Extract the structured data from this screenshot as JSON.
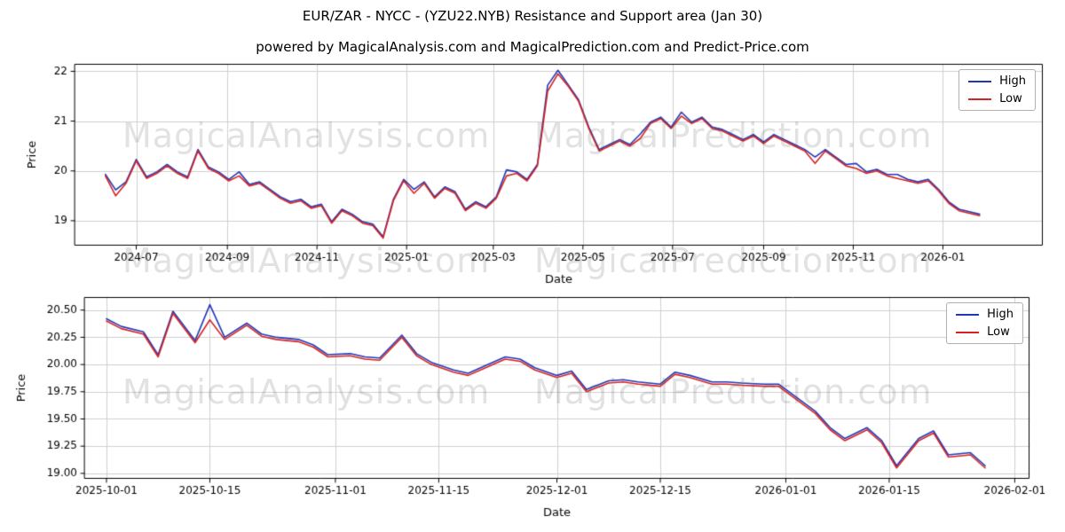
{
  "header": {
    "title": "EUR/ZAR - NYCC -  (YZU22.NYB) Resistance and Support area (Jan 30)",
    "subtitle": "powered by MagicalAnalysis.com and MagicalPrediction.com and Predict-Price.com"
  },
  "watermarks": {
    "left": "MagicalAnalysis.com",
    "right": "MagicalPrediction.com"
  },
  "legend": {
    "high_label": "High",
    "low_label": "Low"
  },
  "colors": {
    "high": "#2038b5",
    "low": "#d62222",
    "grid": "#cfcfcf",
    "axis": "#000000",
    "watermark": "rgba(60,60,60,0.15)"
  },
  "chart_data": [
    {
      "type": "line",
      "title": "",
      "xlabel": "Date",
      "ylabel": "Price",
      "grid": true,
      "legend_position": "upper right",
      "xlim": [
        "2024-05-20",
        "2026-03-10"
      ],
      "ylim": [
        18.5,
        22.15
      ],
      "xticks": [
        "2024-07",
        "2024-09",
        "2024-11",
        "2025-01",
        "2025-03",
        "2025-05",
        "2025-07",
        "2025-09",
        "2025-11",
        "2026-01"
      ],
      "xtick_labels": [
        "2024-07",
        "2024-09",
        "2024-11",
        "2025-01",
        "2025-03",
        "2025-05",
        "2025-07",
        "2025-09",
        "2025-11",
        "2026-01"
      ],
      "yticks": [
        19,
        20,
        21,
        22
      ],
      "ytick_labels": [
        "19",
        "20",
        "21",
        "22"
      ],
      "x": [
        "2024-06-10",
        "2024-06-17",
        "2024-06-24",
        "2024-07-01",
        "2024-07-08",
        "2024-07-15",
        "2024-07-22",
        "2024-07-29",
        "2024-08-05",
        "2024-08-12",
        "2024-08-19",
        "2024-08-26",
        "2024-09-02",
        "2024-09-09",
        "2024-09-16",
        "2024-09-23",
        "2024-09-30",
        "2024-10-07",
        "2024-10-14",
        "2024-10-21",
        "2024-10-28",
        "2024-11-04",
        "2024-11-11",
        "2024-11-18",
        "2024-11-25",
        "2024-12-02",
        "2024-12-09",
        "2024-12-16",
        "2024-12-23",
        "2024-12-30",
        "2025-01-06",
        "2025-01-13",
        "2025-01-20",
        "2025-01-27",
        "2025-02-03",
        "2025-02-10",
        "2025-02-17",
        "2025-02-24",
        "2025-03-03",
        "2025-03-10",
        "2025-03-17",
        "2025-03-24",
        "2025-03-31",
        "2025-04-07",
        "2025-04-14",
        "2025-04-21",
        "2025-04-28",
        "2025-05-05",
        "2025-05-12",
        "2025-05-19",
        "2025-05-26",
        "2025-06-02",
        "2025-06-09",
        "2025-06-16",
        "2025-06-23",
        "2025-06-30",
        "2025-07-07",
        "2025-07-14",
        "2025-07-21",
        "2025-07-28",
        "2025-08-04",
        "2025-08-11",
        "2025-08-18",
        "2025-08-25",
        "2025-09-01",
        "2025-09-08",
        "2025-09-15",
        "2025-09-22",
        "2025-09-29",
        "2025-10-06",
        "2025-10-13",
        "2025-10-20",
        "2025-10-27",
        "2025-11-03",
        "2025-11-10",
        "2025-11-17",
        "2025-11-24",
        "2025-12-01",
        "2025-12-08",
        "2025-12-15",
        "2025-12-22",
        "2025-12-29",
        "2026-01-05",
        "2026-01-12",
        "2026-01-19",
        "2026-01-26"
      ],
      "series": [
        {
          "name": "High",
          "color": "#2038b5",
          "values": [
            19.93,
            19.62,
            19.78,
            20.23,
            19.88,
            19.98,
            20.13,
            19.98,
            19.88,
            20.43,
            20.08,
            19.98,
            19.83,
            19.98,
            19.73,
            19.78,
            19.63,
            19.48,
            19.38,
            19.43,
            19.28,
            19.33,
            18.98,
            19.23,
            19.13,
            18.98,
            18.93,
            18.68,
            19.43,
            19.83,
            19.63,
            19.78,
            19.48,
            19.68,
            19.58,
            19.23,
            19.38,
            19.28,
            19.48,
            20.02,
            19.98,
            19.83,
            20.13,
            21.72,
            22.02,
            21.73,
            21.43,
            20.88,
            20.43,
            20.53,
            20.63,
            20.53,
            20.74,
            20.98,
            21.08,
            20.88,
            21.18,
            20.98,
            21.08,
            20.88,
            20.83,
            20.73,
            20.63,
            20.73,
            20.58,
            20.73,
            20.63,
            20.53,
            20.43,
            20.28,
            20.43,
            20.28,
            20.13,
            20.15,
            19.98,
            20.03,
            19.93,
            19.93,
            19.83,
            19.78,
            19.83,
            19.63,
            19.38,
            19.23,
            19.18,
            19.13
          ]
        },
        {
          "name": "Low",
          "color": "#d62222",
          "values": [
            19.9,
            19.5,
            19.75,
            20.2,
            19.85,
            19.95,
            20.1,
            19.95,
            19.85,
            20.4,
            20.05,
            19.95,
            19.8,
            19.9,
            19.7,
            19.75,
            19.6,
            19.45,
            19.35,
            19.4,
            19.25,
            19.3,
            18.95,
            19.2,
            19.1,
            18.95,
            18.9,
            18.65,
            19.4,
            19.8,
            19.55,
            19.75,
            19.45,
            19.65,
            19.55,
            19.2,
            19.35,
            19.25,
            19.45,
            19.9,
            19.95,
            19.8,
            20.1,
            21.6,
            21.95,
            21.7,
            21.4,
            20.85,
            20.4,
            20.5,
            20.6,
            20.5,
            20.65,
            20.95,
            21.05,
            20.85,
            21.1,
            20.95,
            21.05,
            20.85,
            20.8,
            20.7,
            20.6,
            20.7,
            20.55,
            20.7,
            20.6,
            20.5,
            20.4,
            20.15,
            20.4,
            20.25,
            20.1,
            20.05,
            19.95,
            20.0,
            19.9,
            19.85,
            19.8,
            19.75,
            19.8,
            19.6,
            19.35,
            19.2,
            19.15,
            19.1
          ]
        }
      ]
    },
    {
      "type": "line",
      "title": "",
      "xlabel": "Date",
      "ylabel": "Price",
      "grid": true,
      "legend_position": "upper right",
      "xlim": [
        "2025-09-28",
        "2026-02-03"
      ],
      "ylim": [
        18.95,
        20.62
      ],
      "xticks": [
        "2025-10-01",
        "2025-10-15",
        "2025-11-01",
        "2025-11-15",
        "2025-12-01",
        "2025-12-15",
        "2026-01-01",
        "2026-01-15",
        "2026-02-01"
      ],
      "xtick_labels": [
        "2025-10-01",
        "2025-10-15",
        "2025-11-01",
        "2025-11-15",
        "2025-12-01",
        "2025-12-15",
        "2026-01-01",
        "2026-01-15",
        "2026-02-01"
      ],
      "yticks": [
        19.0,
        19.25,
        19.5,
        19.75,
        20.0,
        20.25,
        20.5
      ],
      "ytick_labels": [
        "19.00",
        "19.25",
        "19.50",
        "19.75",
        "20.00",
        "20.25",
        "20.50"
      ],
      "x": [
        "2025-10-01",
        "2025-10-03",
        "2025-10-06",
        "2025-10-08",
        "2025-10-10",
        "2025-10-13",
        "2025-10-15",
        "2025-10-17",
        "2025-10-20",
        "2025-10-22",
        "2025-10-24",
        "2025-10-27",
        "2025-10-29",
        "2025-10-31",
        "2025-11-03",
        "2025-11-05",
        "2025-11-07",
        "2025-11-10",
        "2025-11-12",
        "2025-11-14",
        "2025-11-17",
        "2025-11-19",
        "2025-11-21",
        "2025-11-24",
        "2025-11-26",
        "2025-11-28",
        "2025-12-01",
        "2025-12-03",
        "2025-12-05",
        "2025-12-08",
        "2025-12-10",
        "2025-12-12",
        "2025-12-15",
        "2025-12-17",
        "2025-12-19",
        "2025-12-22",
        "2025-12-24",
        "2025-12-26",
        "2025-12-29",
        "2025-12-31",
        "2026-01-02",
        "2026-01-05",
        "2026-01-07",
        "2026-01-09",
        "2026-01-12",
        "2026-01-14",
        "2026-01-16",
        "2026-01-19",
        "2026-01-21",
        "2026-01-23",
        "2026-01-26",
        "2026-01-28"
      ],
      "series": [
        {
          "name": "High",
          "color": "#2038b5",
          "values": [
            20.42,
            20.35,
            20.3,
            20.09,
            20.49,
            20.22,
            20.55,
            20.25,
            20.38,
            20.28,
            20.25,
            20.23,
            20.18,
            20.09,
            20.1,
            20.07,
            20.06,
            20.27,
            20.1,
            20.02,
            19.95,
            19.92,
            19.98,
            20.07,
            20.05,
            19.97,
            19.9,
            19.94,
            19.77,
            19.85,
            19.86,
            19.84,
            19.82,
            19.93,
            19.9,
            19.84,
            19.84,
            19.83,
            19.82,
            19.82,
            19.72,
            19.57,
            19.42,
            19.32,
            19.42,
            19.3,
            19.07,
            19.32,
            19.39,
            19.17,
            19.19,
            19.07
          ]
        },
        {
          "name": "Low",
          "color": "#d62222",
          "values": [
            20.4,
            20.33,
            20.28,
            20.07,
            20.47,
            20.2,
            20.41,
            20.23,
            20.36,
            20.26,
            20.23,
            20.21,
            20.16,
            20.07,
            20.08,
            20.05,
            20.04,
            20.25,
            20.08,
            20.0,
            19.93,
            19.9,
            19.96,
            20.05,
            20.03,
            19.95,
            19.88,
            19.92,
            19.75,
            19.83,
            19.84,
            19.82,
            19.8,
            19.91,
            19.88,
            19.82,
            19.82,
            19.81,
            19.8,
            19.8,
            19.7,
            19.55,
            19.4,
            19.3,
            19.4,
            19.28,
            19.05,
            19.3,
            19.37,
            19.15,
            19.17,
            19.05
          ]
        }
      ]
    }
  ]
}
